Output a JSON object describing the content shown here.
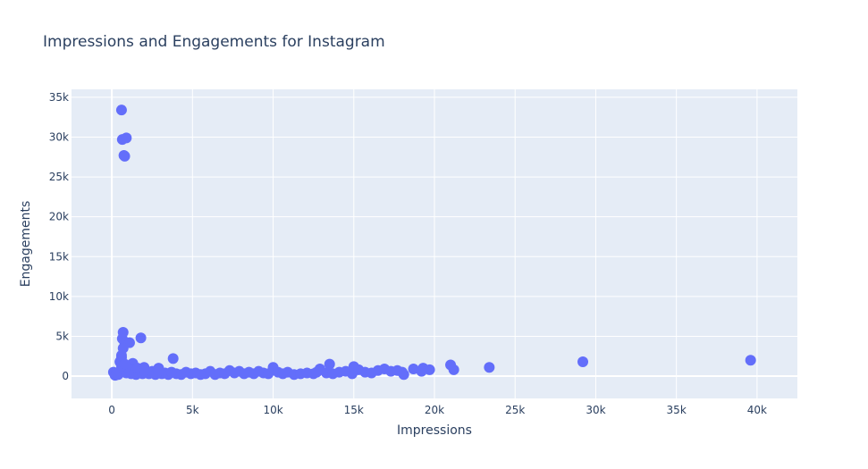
{
  "chart_data": {
    "type": "scatter",
    "title": "Impressions and Engagements for Instagram",
    "xlabel": "Impressions",
    "ylabel": "Engagements",
    "xlim": [
      -2500,
      42500
    ],
    "ylim": [
      -2800,
      36000
    ],
    "x_ticks": [
      0,
      5000,
      10000,
      15000,
      20000,
      25000,
      30000,
      35000,
      40000
    ],
    "x_tick_labels": [
      "0",
      "5k",
      "10k",
      "15k",
      "20k",
      "25k",
      "30k",
      "35k",
      "40k"
    ],
    "y_ticks": [
      0,
      5000,
      10000,
      15000,
      20000,
      25000,
      30000,
      35000
    ],
    "y_tick_labels": [
      "0",
      "5k",
      "10k",
      "15k",
      "20k",
      "25k",
      "30k",
      "35k"
    ],
    "grid": true,
    "marker_color": "#636efa",
    "background_color": "#e5ecf6",
    "series": [
      {
        "x": [
          600,
          650,
          900,
          750,
          800,
          650,
          700,
          800,
          600,
          1100,
          1300,
          1800,
          700,
          500,
          600,
          3800,
          100,
          200,
          300,
          400,
          500,
          700,
          900,
          1000,
          1200,
          1400,
          1500,
          1600,
          1700,
          1900,
          2000,
          2100,
          2300,
          2500,
          2700,
          2900,
          3100,
          3300,
          3500,
          3700,
          4000,
          4300,
          4600,
          4900,
          5200,
          5500,
          5800,
          6100,
          6400,
          6700,
          7000,
          7300,
          7600,
          7900,
          8200,
          8500,
          8800,
          9100,
          9400,
          9700,
          10000,
          10300,
          10600,
          10900,
          11300,
          11700,
          12100,
          12500,
          12900,
          13300,
          13700,
          14100,
          14500,
          14900,
          15300,
          15700,
          16100,
          16500,
          16900,
          17300,
          17700,
          18100,
          18700,
          19300,
          19700,
          1200,
          1600,
          2000,
          2900,
          900,
          600,
          800,
          13500,
          15000,
          21000,
          21200,
          23400,
          29200,
          39600,
          19200,
          18000,
          12700
        ],
        "y": [
          33400,
          29700,
          29900,
          27700,
          27600,
          4700,
          5500,
          4200,
          2300,
          4200,
          1600,
          4800,
          3500,
          1800,
          2600,
          2200,
          500,
          100,
          300,
          200,
          600,
          900,
          400,
          1000,
          300,
          700,
          200,
          500,
          800,
          300,
          1100,
          400,
          300,
          600,
          200,
          1000,
          300,
          400,
          200,
          500,
          300,
          200,
          500,
          300,
          400,
          200,
          300,
          600,
          200,
          400,
          300,
          700,
          400,
          600,
          300,
          500,
          300,
          600,
          400,
          300,
          1100,
          500,
          300,
          500,
          200,
          300,
          400,
          300,
          900,
          400,
          300,
          500,
          600,
          300,
          800,
          500,
          400,
          700,
          900,
          600,
          700,
          200,
          900,
          1000,
          800,
          800,
          1000,
          700,
          600,
          1200,
          1300,
          1500,
          1500,
          1200,
          1400,
          800,
          1100,
          1800,
          2000,
          600,
          500,
          500
        ]
      }
    ]
  }
}
